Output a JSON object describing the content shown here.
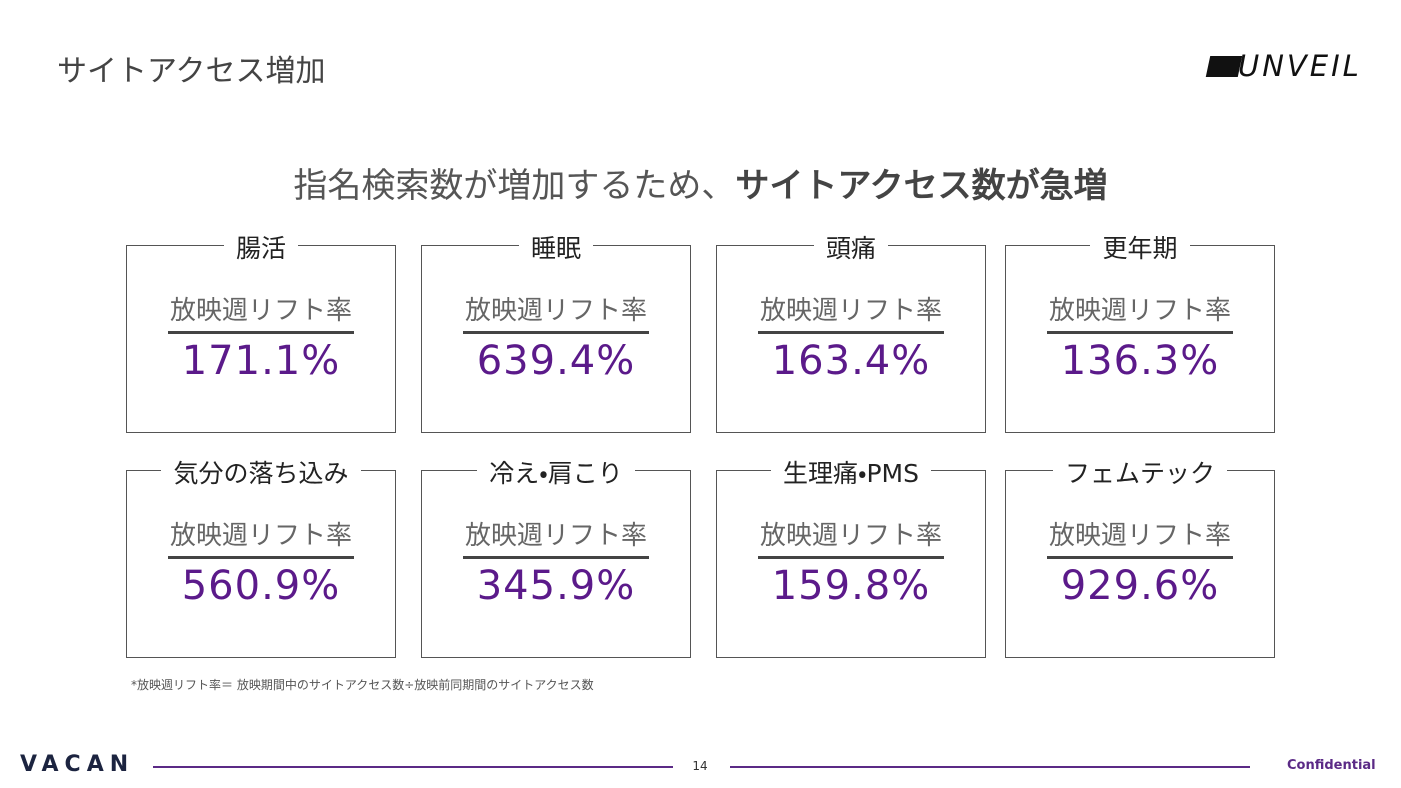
{
  "header": {
    "title": "サイトアクセス増加",
    "logo": "UNVEIL"
  },
  "headline": {
    "lead": "指名検索数が増加するため、",
    "emphasis": "サイトアクセス数が急増"
  },
  "cards": [
    {
      "category": "腸活",
      "label": "放映週リフト率",
      "value": "171.1%"
    },
    {
      "category": "睡眠",
      "label": "放映週リフト率",
      "value": "639.4%"
    },
    {
      "category": "頭痛",
      "label": "放映週リフト率",
      "value": "163.4%"
    },
    {
      "category": "更年期",
      "label": "放映週リフト率",
      "value": "136.3%"
    },
    {
      "category": "気分の落ち込み",
      "label": "放映週リフト率",
      "value": "560.9%"
    },
    {
      "category": "冷え・肩こり",
      "label": "放映週リフト率",
      "value": "345.9%"
    },
    {
      "category": "生理痛・PMS",
      "label": "放映週リフト率",
      "value": "159.8%"
    },
    {
      "category": "フェムテック",
      "label": "放映週リフト率",
      "value": "929.6%"
    }
  ],
  "footnote": "*放映週リフト率＝ 放映期間中のサイトアクセス数÷放映前同期間のサイトアクセス数",
  "footer": {
    "brand": "VACAN",
    "page": "14",
    "confidential": "Confidential"
  }
}
